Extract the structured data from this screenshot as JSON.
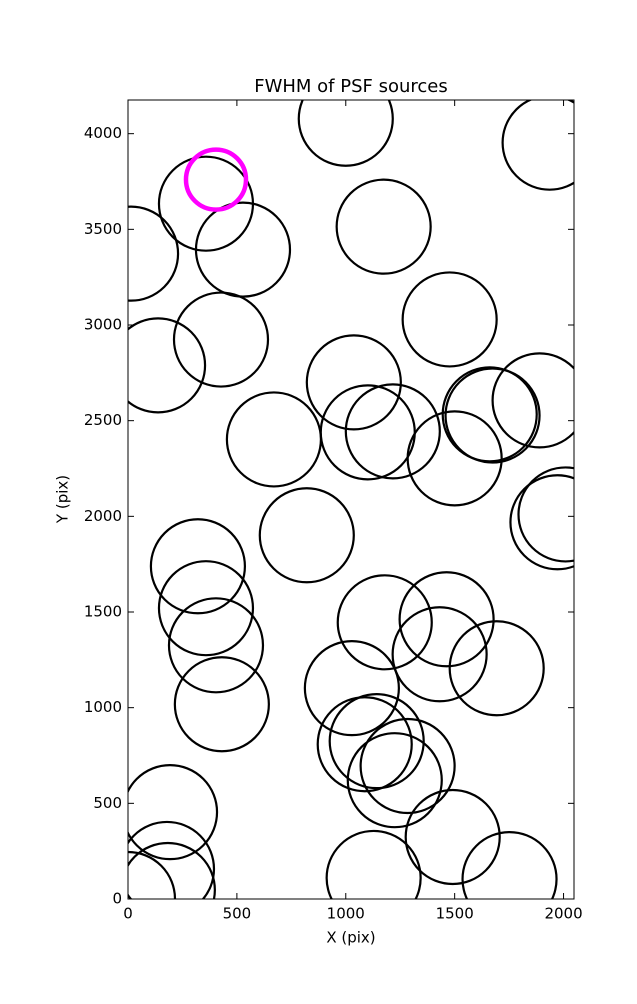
{
  "chart_data": {
    "type": "scatter",
    "title": "FWHM of PSF sources",
    "x_label": "X (pix)",
    "y_label": "Y (pix)",
    "xlim": [
      0,
      2048
    ],
    "ylim": [
      0,
      4176
    ],
    "xticks": [
      0,
      500,
      1000,
      1500,
      2000
    ],
    "yticks": [
      0,
      500,
      1000,
      1500,
      2000,
      2500,
      3000,
      3500,
      4000
    ],
    "grid": false,
    "series": [
      {
        "color": "#000000",
        "marker": "open-circle",
        "marker_radius": 47,
        "x": [
          1000,
          1936,
          358,
          14,
          528,
          1174,
          427,
          138,
          1477,
          1037,
          670,
          1101,
          1216,
          1500,
          1661,
          1674,
          1890,
          1972,
          2009,
          821,
          321,
          358,
          404,
          431,
          1179,
          1463,
          1431,
          1693,
          1028,
          1087,
          1142,
          1284,
          1225,
          1491,
          1752,
          1128,
          193,
          179,
          183,
          0
        ],
        "y": [
          4078,
          3953,
          3634,
          3373,
          3394,
          3514,
          2924,
          2789,
          3029,
          2700,
          2402,
          2439,
          2444,
          2303,
          2533,
          2527,
          2606,
          1969,
          2010,
          1901,
          1739,
          1520,
          1326,
          1018,
          1446,
          1462,
          1279,
          1206,
          1102,
          809,
          825,
          695,
          621,
          324,
          104,
          110,
          454,
          157,
          47,
          0
        ]
      },
      {
        "color": "#ff00ff",
        "marker": "open-circle",
        "marker_radius": 30,
        "x": [
          404
        ],
        "y": [
          3760
        ]
      }
    ]
  }
}
